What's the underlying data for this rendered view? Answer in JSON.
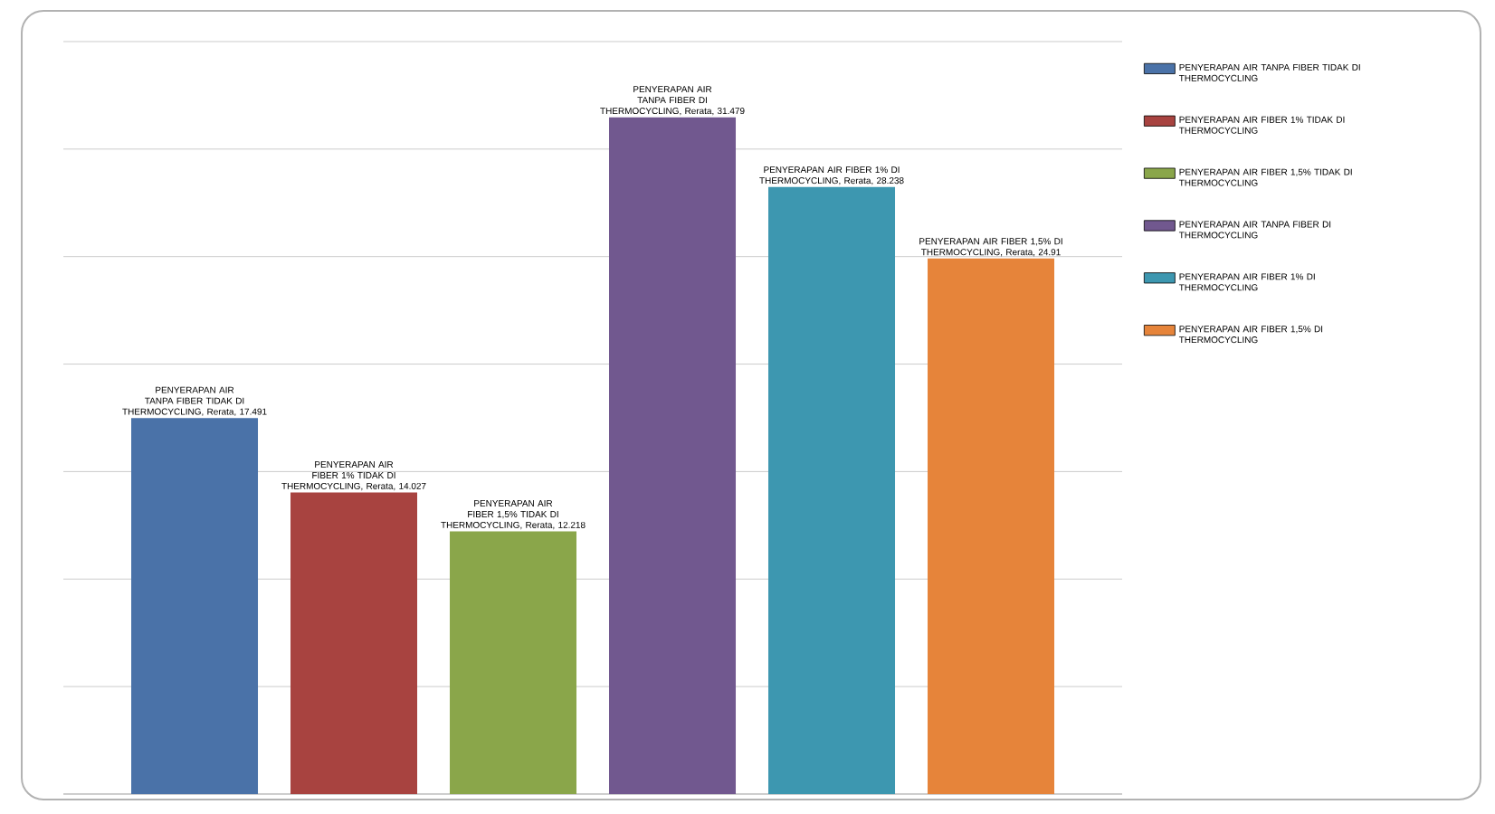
{
  "chart_data": {
    "type": "bar",
    "categories": [
      null
    ],
    "series": [
      {
        "name": "PENYERAPAN AIR TANPA FIBER TIDAK DI THERMOCYCLING",
        "color": "#4a72a8",
        "values": [
          17.491
        ]
      },
      {
        "name": "PENYERAPAN AIR FIBER 1% TIDAK DI THERMOCYCLING",
        "color": "#a84340",
        "values": [
          14.027
        ]
      },
      {
        "name": "PENYERAPAN AIR FIBER 1,5% TIDAK DI THERMOCYCLING",
        "color": "#8aa64a",
        "values": [
          12.218
        ]
      },
      {
        "name": "PENYERAPAN AIR TANPA FIBER DI THERMOCYCLING",
        "color": "#71588f",
        "values": [
          31.479
        ]
      },
      {
        "name": "PENYERAPAN AIR FIBER 1% DI THERMOCYCLING",
        "color": "#3d97b0",
        "values": [
          28.238
        ]
      },
      {
        "name": "PENYERAPAN AIR FIBER 1,5% DI THERMOCYCLING",
        "color": "#e6843a",
        "values": [
          24.91
        ]
      }
    ],
    "annotations": [
      {
        "text": "PENYERAPAN AIR TANPA FIBER TIDAK DI THERMOCYCLING, Rerata,",
        "y": 17.491
      },
      {
        "text": "PENYERAPAN AIR FIBER 1% TIDAK DI THERMOCYCLING, Rerata,",
        "y": 14.027
      },
      {
        "text": "PENYERAPAN AIR FIBER 1,5% TIDAK DI THERMOCYCLING, Rerata,",
        "y": 12.218
      },
      {
        "text": "PENYERAPAN AIR TANPA FIBER DI THERMOCYCLING, Rerata,",
        "y": 31.479
      },
      {
        "text": "PENYERAPAN AIR FIBER 1% DI THERMOCYCLING, Rerata,",
        "y": 28.238
      },
      {
        "text": "PENYERAPAN AIR FIBER 1,5% DI THERMOCYCLING, Rerata,",
        "y": 24.91
      }
    ],
    "ylim": [
      0,
      35
    ],
    "yticks": [
      {
        "value": 0,
        "label": null
      },
      {
        "value": 5,
        "label": null
      },
      {
        "value": 10,
        "label": null
      },
      {
        "value": 15,
        "label": null
      },
      {
        "value": 20,
        "label": null
      },
      {
        "value": 25,
        "label": null
      },
      {
        "value": 30,
        "label": null
      },
      {
        "value": 35,
        "label": null
      }
    ],
    "data_labels": true,
    "grid": "y",
    "legend": "right"
  }
}
